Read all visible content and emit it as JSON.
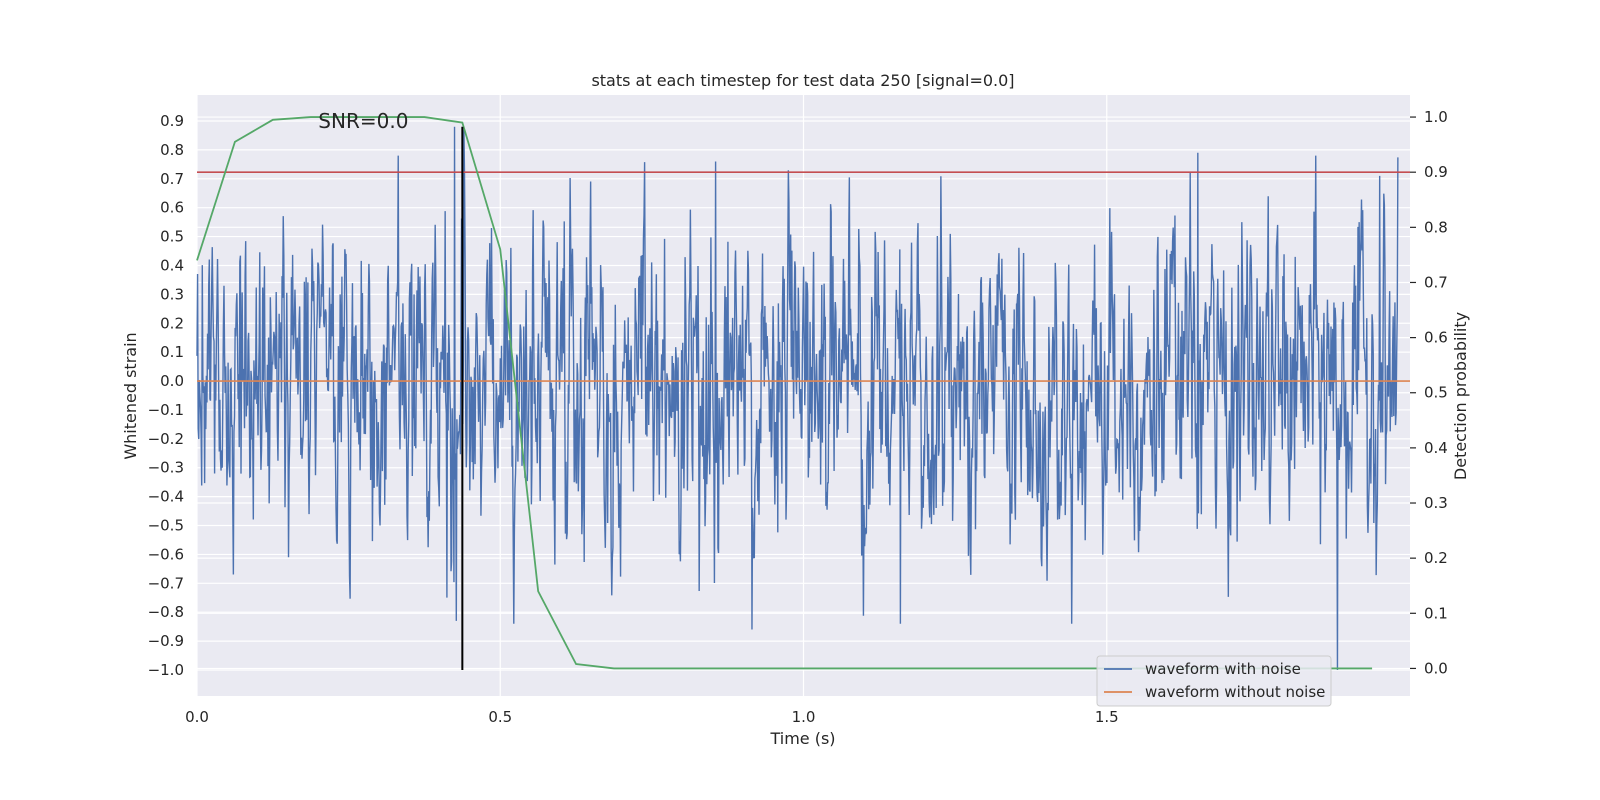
{
  "chart_data": {
    "type": "line",
    "title": "stats at each timestep for test data 250 [signal=0.0]",
    "xlabel": "Time (s)",
    "ylabel": "Whitened strain",
    "y2label": "Detection probability",
    "xlim": [
      0.0,
      2.0
    ],
    "ylim": [
      -1.09,
      0.99
    ],
    "y2lim": [
      -0.05,
      1.04
    ],
    "xticks": [
      0.0,
      0.5,
      1.0,
      1.5
    ],
    "xtick_labels": [
      "0.0",
      "0.5",
      "1.0",
      "1.5"
    ],
    "yticks": [
      0.9,
      0.8,
      0.7,
      0.6,
      0.5,
      0.4,
      0.3,
      0.2,
      0.1,
      0.0,
      -0.1,
      -0.2,
      -0.3,
      -0.4,
      -0.5,
      -0.6,
      -0.7,
      -0.8,
      -0.9,
      -1.0
    ],
    "ytick_labels": [
      "0.9",
      "0.8",
      "0.7",
      "0.6",
      "0.5",
      "0.4",
      "0.3",
      "0.2",
      "0.1",
      "0.0",
      "−0.1",
      "−0.2",
      "−0.3",
      "−0.4",
      "−0.5",
      "−0.6",
      "−0.7",
      "−0.8",
      "−0.9",
      "−1.0"
    ],
    "y2ticks": [
      1.0,
      0.9,
      0.8,
      0.7,
      0.6,
      0.5,
      0.4,
      0.3,
      0.2,
      0.1,
      0.0
    ],
    "y2tick_labels": [
      "1.0",
      "0.9",
      "0.8",
      "0.7",
      "0.6",
      "0.5",
      "0.4",
      "0.3",
      "0.2",
      "0.1",
      "0.0"
    ],
    "grid": true,
    "legend_position": "lower-right",
    "annotation": {
      "text": "SNR=0.0",
      "x": 0.2,
      "y": 0.9
    },
    "series": [
      {
        "name": "waveform with noise",
        "color": "#4c72b0",
        "kind": "noise",
        "x_start": 0.0,
        "x_end": 1.98,
        "n_points": 2048,
        "range": [
          -1.0,
          0.88
        ]
      },
      {
        "name": "waveform without noise",
        "color": "#dd8452",
        "kind": "constant",
        "x": [
          0.0,
          2.0
        ],
        "y": [
          0.0,
          0.0
        ]
      },
      {
        "name": "detection probability",
        "color": "#55a868",
        "axis": "right",
        "x": [
          0.0,
          0.0625,
          0.125,
          0.1875,
          0.25,
          0.3125,
          0.375,
          0.4375,
          0.5,
          0.5625,
          0.625,
          0.6875,
          0.75,
          0.8125,
          0.875,
          0.9375,
          1.0,
          1.0625,
          1.125,
          1.1875,
          1.25,
          1.3125,
          1.375,
          1.4375,
          1.5,
          1.5625,
          1.625,
          1.6875,
          1.75,
          1.8125,
          1.875,
          1.9375
        ],
        "values": [
          0.74,
          0.955,
          0.995,
          1.0,
          1.0,
          1.0,
          1.0,
          0.99,
          0.76,
          0.14,
          0.008,
          0.0,
          0.0,
          0.0,
          0.0,
          0.0,
          0.0,
          0.0,
          0.0,
          0.0,
          0.0,
          0.0,
          0.0,
          0.0,
          0.0,
          0.0,
          0.0,
          0.0,
          0.0,
          0.0,
          0.0,
          0.0
        ]
      }
    ],
    "hlines": [
      {
        "name": "detection threshold",
        "color": "#c44e52",
        "axis": "right",
        "y": 0.9
      }
    ],
    "vlines": [
      {
        "name": "event marker",
        "color": "#000000",
        "x": 0.4375,
        "y_from": -1.0,
        "y_to": 0.88
      }
    ]
  }
}
